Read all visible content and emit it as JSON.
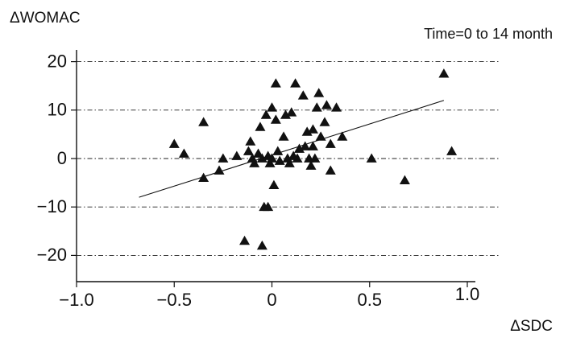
{
  "chart_data": {
    "type": "scatter",
    "title": "",
    "annotation": "Time=0 to 14 month",
    "xlabel": "ΔSDC",
    "ylabel": "ΔWOMAC",
    "xlim": [
      -1.0,
      1.0
    ],
    "ylim": [
      -25,
      25
    ],
    "x_ticks": [
      "−1.0",
      "−0.5",
      "0",
      "0.5",
      "1.0"
    ],
    "x_tick_values": [
      -1.0,
      -0.5,
      0,
      0.5,
      1.0
    ],
    "y_ticks": [
      "20",
      "10",
      "0",
      "−10",
      "−20"
    ],
    "y_tick_values": [
      20,
      10,
      0,
      -10,
      -20
    ],
    "grid": "horizontal dash-dot",
    "marker": "triangle",
    "marker_color": "#111111",
    "trendline": {
      "x": [
        -0.68,
        0.88
      ],
      "y": [
        -8,
        12
      ]
    },
    "points": [
      {
        "x": -0.5,
        "y": 3
      },
      {
        "x": -0.45,
        "y": 1
      },
      {
        "x": -0.35,
        "y": 7.5
      },
      {
        "x": -0.35,
        "y": -4
      },
      {
        "x": -0.27,
        "y": -2.5
      },
      {
        "x": -0.25,
        "y": 0
      },
      {
        "x": -0.18,
        "y": 0.5
      },
      {
        "x": -0.12,
        "y": 1.5
      },
      {
        "x": -0.11,
        "y": 3.5
      },
      {
        "x": -0.1,
        "y": 0
      },
      {
        "x": -0.09,
        "y": -1
      },
      {
        "x": -0.07,
        "y": 1
      },
      {
        "x": -0.06,
        "y": 6.5
      },
      {
        "x": -0.05,
        "y": 0
      },
      {
        "x": -0.04,
        "y": -10
      },
      {
        "x": -0.05,
        "y": -18
      },
      {
        "x": -0.03,
        "y": 9
      },
      {
        "x": -0.02,
        "y": 0.5
      },
      {
        "x": -0.01,
        "y": -1
      },
      {
        "x": 0,
        "y": 10.5
      },
      {
        "x": 0,
        "y": 0
      },
      {
        "x": 0.01,
        "y": -5.5
      },
      {
        "x": 0.02,
        "y": 15.5
      },
      {
        "x": 0.02,
        "y": 8
      },
      {
        "x": 0.03,
        "y": 1.5
      },
      {
        "x": 0.04,
        "y": -0.5
      },
      {
        "x": 0.06,
        "y": 4.5
      },
      {
        "x": 0.07,
        "y": 9
      },
      {
        "x": 0.08,
        "y": 0
      },
      {
        "x": 0.09,
        "y": -1
      },
      {
        "x": 0.1,
        "y": 9.5
      },
      {
        "x": 0.12,
        "y": 15.5
      },
      {
        "x": 0.13,
        "y": 0
      },
      {
        "x": 0.14,
        "y": 2
      },
      {
        "x": 0.16,
        "y": 13
      },
      {
        "x": 0.17,
        "y": 2.5
      },
      {
        "x": 0.18,
        "y": 5.5
      },
      {
        "x": 0.19,
        "y": 0
      },
      {
        "x": 0.2,
        "y": -1.5
      },
      {
        "x": 0.21,
        "y": 6
      },
      {
        "x": 0.21,
        "y": 2.5
      },
      {
        "x": 0.22,
        "y": 0
      },
      {
        "x": 0.23,
        "y": 10.5
      },
      {
        "x": 0.24,
        "y": 13.5
      },
      {
        "x": 0.25,
        "y": 4.5
      },
      {
        "x": 0.27,
        "y": 7.5
      },
      {
        "x": 0.28,
        "y": 11
      },
      {
        "x": 0.3,
        "y": 3
      },
      {
        "x": 0.3,
        "y": -2.5
      },
      {
        "x": 0.33,
        "y": 10.5
      },
      {
        "x": 0.36,
        "y": 4.5
      },
      {
        "x": 0.51,
        "y": 0
      },
      {
        "x": 0.68,
        "y": -4.5
      },
      {
        "x": -0.14,
        "y": -17
      },
      {
        "x": 0.88,
        "y": 17.5
      },
      {
        "x": 0.92,
        "y": 1.5
      },
      {
        "x": -0.02,
        "y": -10
      },
      {
        "x": 0.11,
        "y": 0.5
      }
    ]
  }
}
